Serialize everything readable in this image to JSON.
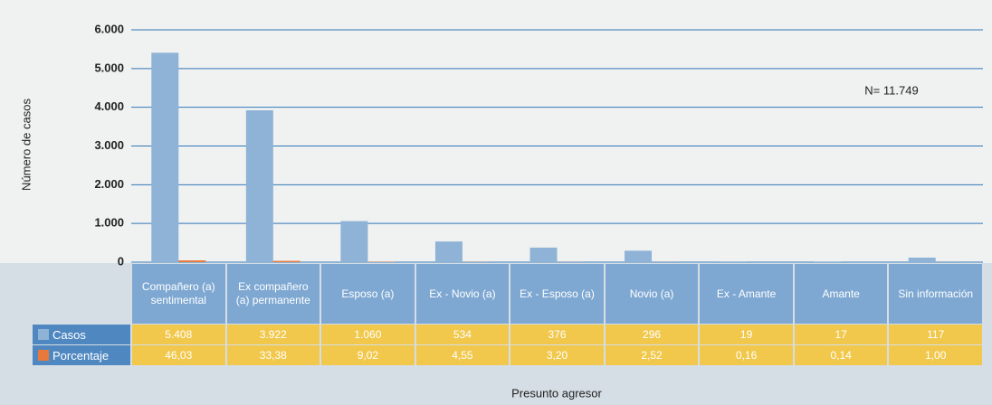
{
  "chart_data": {
    "type": "bar",
    "y_label": "Número de casos",
    "x_label": "Presunto agresor",
    "annotation": "N= 11.749",
    "categories": [
      "Compañero (a) sentimental",
      "Ex compañero (a) permanente",
      "Esposo (a)",
      "Ex - Novio (a)",
      "Ex - Esposo (a)",
      "Novio (a)",
      "Ex - Amante",
      "Amante",
      "Sin información"
    ],
    "series": [
      {
        "name": "Casos",
        "color": "#8fb3d6",
        "values": [
          5408,
          3922,
          1060,
          534,
          376,
          296,
          19,
          17,
          117
        ],
        "value_labels": [
          "5.408",
          "3.922",
          "1.060",
          "534",
          "376",
          "296",
          "19",
          "17",
          "117"
        ]
      },
      {
        "name": "Porcentaje",
        "color": "#e8793a",
        "values": [
          46.03,
          33.38,
          9.02,
          4.55,
          3.2,
          2.52,
          0.16,
          0.14,
          1.0
        ],
        "value_labels": [
          "46,03",
          "33,38",
          "9,02",
          "4,55",
          "3,20",
          "2,52",
          "0,16",
          "0,14",
          "1,00"
        ]
      }
    ],
    "ylim": [
      0,
      6000
    ],
    "yticks": [
      {
        "value": 0,
        "label": "0"
      },
      {
        "value": 1000,
        "label": "1.000"
      },
      {
        "value": 2000,
        "label": "2.000"
      },
      {
        "value": 3000,
        "label": "3.000"
      },
      {
        "value": 4000,
        "label": "4.000"
      },
      {
        "value": 5000,
        "label": "5.000"
      },
      {
        "value": 6000,
        "label": "6.000"
      }
    ],
    "grid": true
  }
}
